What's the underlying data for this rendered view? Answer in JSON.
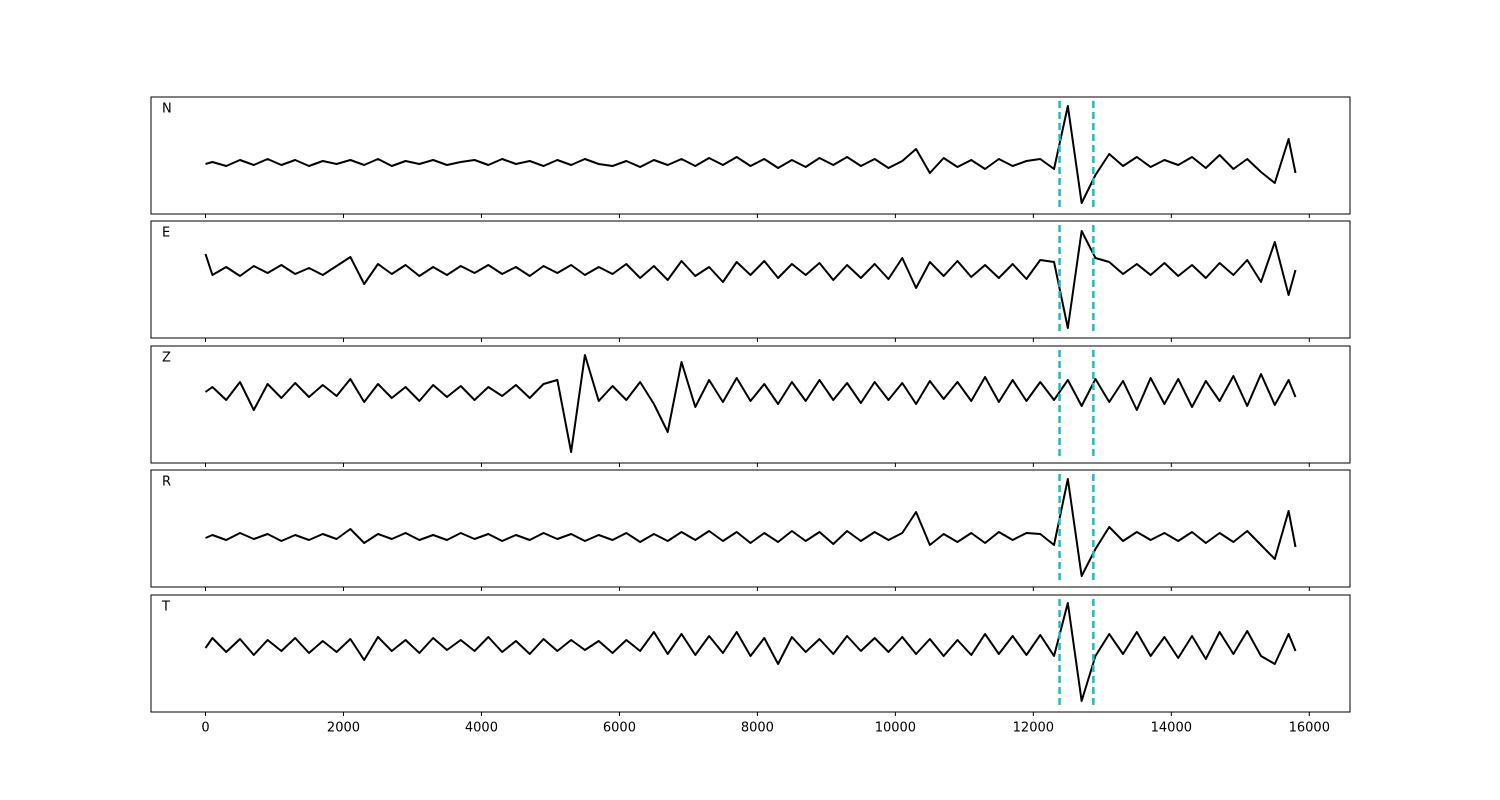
{
  "chart_data": {
    "type": "line",
    "layout": "stacked-panels",
    "x": [
      0,
      100,
      300,
      500,
      700,
      900,
      1100,
      1300,
      1500,
      1700,
      1900,
      2100,
      2300,
      2500,
      2700,
      2900,
      3100,
      3300,
      3500,
      3700,
      3900,
      4100,
      4300,
      4500,
      4700,
      4900,
      5100,
      5300,
      5500,
      5700,
      5900,
      6100,
      6300,
      6500,
      6700,
      6900,
      7100,
      7300,
      7500,
      7700,
      7900,
      8100,
      8300,
      8500,
      8700,
      8900,
      9100,
      9300,
      9500,
      9700,
      9900,
      10100,
      10300,
      10500,
      10700,
      10900,
      11100,
      11300,
      11500,
      11700,
      11900,
      12100,
      12300,
      12500,
      12700,
      12900,
      13100,
      13300,
      13500,
      13700,
      13900,
      14100,
      14300,
      14500,
      14700,
      14900,
      15100,
      15300,
      15500,
      15700,
      15800
    ],
    "xlim": [
      -790,
      16590
    ],
    "xticks": [
      0,
      2000,
      4000,
      6000,
      8000,
      10000,
      12000,
      14000,
      16000
    ],
    "markers": {
      "values": [
        12380,
        12870
      ],
      "color": "#17bfbf"
    },
    "series": [
      {
        "name": "N",
        "color": "#000000",
        "ylim": [
          -51,
          66
        ],
        "values": [
          -1,
          1,
          -3,
          3,
          -2,
          4,
          -2,
          3,
          -3,
          2,
          -1,
          3,
          -2,
          4,
          -3,
          2,
          -1,
          3,
          -2,
          1,
          3,
          -2,
          4,
          -1,
          2,
          -3,
          3,
          -2,
          4,
          -1,
          -3,
          2,
          -4,
          3,
          -2,
          4,
          -3,
          5,
          -2,
          6,
          -3,
          4,
          -5,
          3,
          -4,
          5,
          -2,
          6,
          -3,
          4,
          -5,
          2,
          14,
          -10,
          5,
          -4,
          3,
          -6,
          4,
          -3,
          2,
          4,
          -6,
          57,
          -40,
          -12,
          9,
          -3,
          6,
          -4,
          3,
          -2,
          6,
          -5,
          8,
          -6,
          4,
          -9,
          -20,
          24,
          -10
        ]
      },
      {
        "name": "E",
        "color": "#000000",
        "ylim": [
          -68,
          49
        ],
        "values": [
          16,
          -5,
          3,
          -6,
          4,
          -3,
          5,
          -4,
          2,
          -5,
          4,
          13,
          -14,
          6,
          -4,
          5,
          -6,
          3,
          -5,
          4,
          -3,
          5,
          -4,
          3,
          -6,
          4,
          -3,
          5,
          -5,
          3,
          -4,
          6,
          -8,
          4,
          -10,
          9,
          -6,
          3,
          -12,
          8,
          -5,
          9,
          -8,
          6,
          -5,
          7,
          -10,
          5,
          -8,
          6,
          -9,
          12,
          -18,
          8,
          -6,
          9,
          -7,
          5,
          -8,
          6,
          -9,
          10,
          8,
          -58,
          39,
          12,
          8,
          -4,
          6,
          -5,
          7,
          -6,
          5,
          -8,
          7,
          -5,
          10,
          -12,
          28,
          -25,
          0
        ]
      },
      {
        "name": "Z",
        "color": "#000000",
        "ylim": [
          -71,
          46
        ],
        "values": [
          0,
          5,
          -8,
          10,
          -18,
          8,
          -6,
          9,
          -5,
          7,
          -4,
          13,
          -10,
          8,
          -6,
          5,
          -9,
          7,
          -5,
          6,
          -8,
          5,
          -4,
          7,
          -6,
          8,
          12,
          -60,
          37,
          -9,
          6,
          -8,
          10,
          -12,
          -40,
          30,
          -15,
          12,
          -10,
          14,
          -9,
          8,
          -12,
          10,
          -9,
          12,
          -8,
          9,
          -11,
          10,
          -8,
          9,
          -12,
          11,
          -7,
          10,
          -9,
          15,
          -10,
          12,
          -9,
          10,
          -8,
          12,
          -14,
          13,
          -10,
          11,
          -18,
          14,
          -12,
          13,
          -15,
          11,
          -9,
          16,
          -14,
          18,
          -13,
          12,
          -5
        ]
      },
      {
        "name": "R",
        "color": "#000000",
        "ylim": [
          -50,
          67
        ],
        "values": [
          -1,
          2,
          -3,
          4,
          -2,
          3,
          -4,
          2,
          -3,
          3,
          -2,
          8,
          -6,
          3,
          -2,
          4,
          -3,
          2,
          -3,
          4,
          -2,
          3,
          -4,
          2,
          -3,
          4,
          -2,
          3,
          -4,
          2,
          -3,
          4,
          -5,
          3,
          -4,
          5,
          -3,
          6,
          -4,
          5,
          -6,
          4,
          -5,
          6,
          -4,
          5,
          -7,
          6,
          -4,
          5,
          -3,
          4,
          25,
          -8,
          3,
          -5,
          4,
          -6,
          5,
          -3,
          4,
          3,
          -8,
          58,
          -39,
          -12,
          10,
          -4,
          5,
          -3,
          4,
          -4,
          5,
          -6,
          4,
          -5,
          6,
          -8,
          -22,
          26,
          -10
        ]
      },
      {
        "name": "T",
        "color": "#000000",
        "ylim": [
          -66,
          51
        ],
        "values": [
          -2,
          8,
          -6,
          7,
          -9,
          6,
          -5,
          8,
          -7,
          5,
          -6,
          7,
          -14,
          9,
          -5,
          6,
          -7,
          8,
          -4,
          6,
          -5,
          9,
          -6,
          5,
          -8,
          7,
          -5,
          6,
          -4,
          5,
          -7,
          6,
          -5,
          14,
          -8,
          12,
          -9,
          10,
          -7,
          14,
          -10,
          8,
          -18,
          9,
          -6,
          7,
          -8,
          10,
          -5,
          8,
          -6,
          9,
          -8,
          7,
          -10,
          6,
          -9,
          12,
          -8,
          10,
          -9,
          11,
          -10,
          43,
          -55,
          -10,
          12,
          -8,
          14,
          -10,
          9,
          -12,
          10,
          -13,
          14,
          -8,
          15,
          -10,
          -18,
          12,
          -5
        ]
      }
    ]
  }
}
